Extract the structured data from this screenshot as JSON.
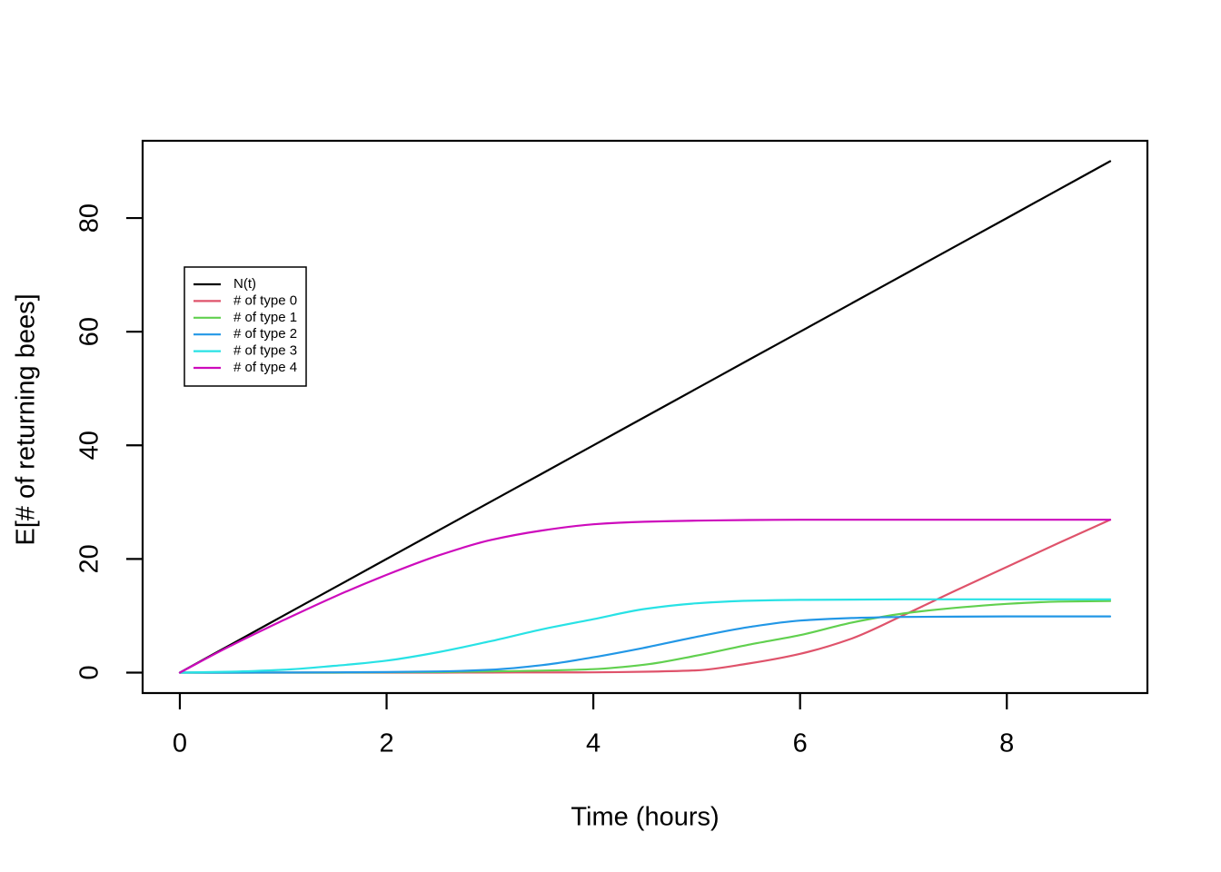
{
  "chart_data": {
    "type": "line",
    "title": "",
    "xlabel": "Time (hours)",
    "ylabel": "E[# of returning bees]",
    "xlim": [
      0,
      9
    ],
    "ylim": [
      0,
      90
    ],
    "x_ticks": [
      "0",
      "2",
      "4",
      "6",
      "8"
    ],
    "x_tick_values": [
      0,
      2,
      4,
      6,
      8
    ],
    "y_ticks": [
      "0",
      "20",
      "40",
      "60",
      "80"
    ],
    "y_tick_values": [
      0,
      20,
      40,
      60,
      80
    ],
    "grid": false,
    "legend_position": "upper-left-inset",
    "x": [
      0,
      0.5,
      1,
      1.5,
      2,
      2.5,
      3,
      3.5,
      4,
      4.5,
      5,
      5.5,
      6,
      6.5,
      7,
      7.5,
      8,
      8.5,
      9
    ],
    "series": [
      {
        "name": "N(t)",
        "color": "#000000",
        "values": [
          0,
          5,
          10,
          15,
          20,
          25,
          30,
          35,
          40,
          45,
          50,
          55,
          60,
          65,
          70,
          75,
          80,
          85,
          90
        ]
      },
      {
        "name": "# of type 0",
        "color": "#DF536B",
        "values": [
          0,
          0,
          0,
          0,
          0,
          0,
          0.02,
          0.03,
          0.05,
          0.15,
          0.4,
          1.6,
          3.3,
          6.0,
          10.1,
          14.4,
          18.6,
          22.8,
          26.9
        ]
      },
      {
        "name": "# of type 1",
        "color": "#61D04F",
        "values": [
          0,
          0,
          0,
          0,
          0.05,
          0.1,
          0.2,
          0.35,
          0.6,
          1.4,
          3.0,
          4.9,
          6.6,
          8.8,
          10.4,
          11.4,
          12.1,
          12.5,
          12.6
        ]
      },
      {
        "name": "# of type 2",
        "color": "#2297E6",
        "values": [
          0,
          0,
          0.02,
          0.05,
          0.1,
          0.2,
          0.5,
          1.3,
          2.7,
          4.4,
          6.3,
          8.0,
          9.15,
          9.6,
          9.8,
          9.85,
          9.9,
          9.9,
          9.9
        ]
      },
      {
        "name": "# of type 3",
        "color": "#28E2E5",
        "values": [
          0,
          0.15,
          0.5,
          1.2,
          2.1,
          3.6,
          5.5,
          7.6,
          9.4,
          11.2,
          12.2,
          12.65,
          12.8,
          12.85,
          12.9,
          12.9,
          12.9,
          12.9,
          12.9
        ]
      },
      {
        "name": "# of type 4",
        "color": "#CD0BBC",
        "values": [
          0,
          4.8,
          9.2,
          13.4,
          17.2,
          20.6,
          23.3,
          25.0,
          26.1,
          26.55,
          26.75,
          26.85,
          26.9,
          26.9,
          26.9,
          26.9,
          26.9,
          26.9,
          26.9
        ]
      }
    ]
  },
  "colors": {
    "background": "#FFFFFF",
    "foreground": "#000000"
  }
}
